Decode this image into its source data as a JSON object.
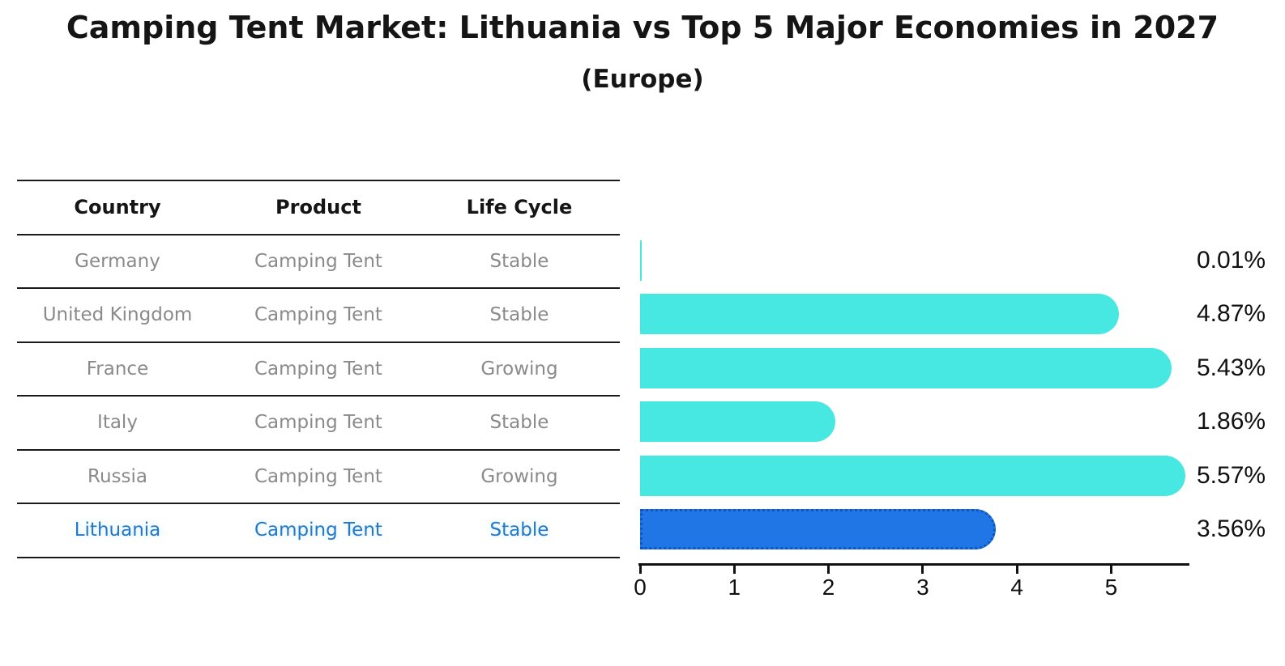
{
  "title": "Camping Tent Market: Lithuania vs Top 5 Major Economies in 2027",
  "subtitle": "(Europe)",
  "table": {
    "headers": [
      "Country",
      "Product",
      "Life Cycle"
    ],
    "rows": [
      {
        "country": "Germany",
        "product": "Camping Tent",
        "life_cycle": "Stable",
        "highlight": false
      },
      {
        "country": "United Kingdom",
        "product": "Camping Tent",
        "life_cycle": "Stable",
        "highlight": false
      },
      {
        "country": "France",
        "product": "Camping Tent",
        "life_cycle": "Growing",
        "highlight": false
      },
      {
        "country": "Italy",
        "product": "Camping Tent",
        "life_cycle": "Stable",
        "highlight": false
      },
      {
        "country": "Russia",
        "product": "Camping Tent",
        "life_cycle": "Growing",
        "highlight": false
      },
      {
        "country": "Lithuania",
        "product": "Camping Tent",
        "life_cycle": "Stable",
        "highlight": true
      }
    ]
  },
  "chart_data": {
    "type": "bar",
    "orientation": "horizontal",
    "title": "Camping Tent Market: Lithuania vs Top 5 Major Economies in 2027 (Europe)",
    "categories": [
      "Germany",
      "United Kingdom",
      "France",
      "Italy",
      "Russia",
      "Lithuania"
    ],
    "values": [
      0.01,
      4.87,
      5.43,
      1.86,
      5.57,
      3.56
    ],
    "value_labels": [
      "0.01%",
      "4.87%",
      "5.43%",
      "1.86%",
      "5.57%",
      "3.56%"
    ],
    "unit": "%",
    "xticks": [
      0,
      1,
      2,
      3,
      4,
      5
    ],
    "xlim": [
      0,
      5.83
    ],
    "grid": false,
    "legend": false,
    "bar_color": "#47E8E1",
    "highlight_color": "#2176E6",
    "highlight_index": 5
  },
  "colors": {
    "background": "#FFFFFF",
    "title_text": "#151515",
    "table_text": "#8A8A8A",
    "highlight_text": "#2478C8",
    "table_line": "#1A1A1A",
    "axis": "#111111"
  }
}
